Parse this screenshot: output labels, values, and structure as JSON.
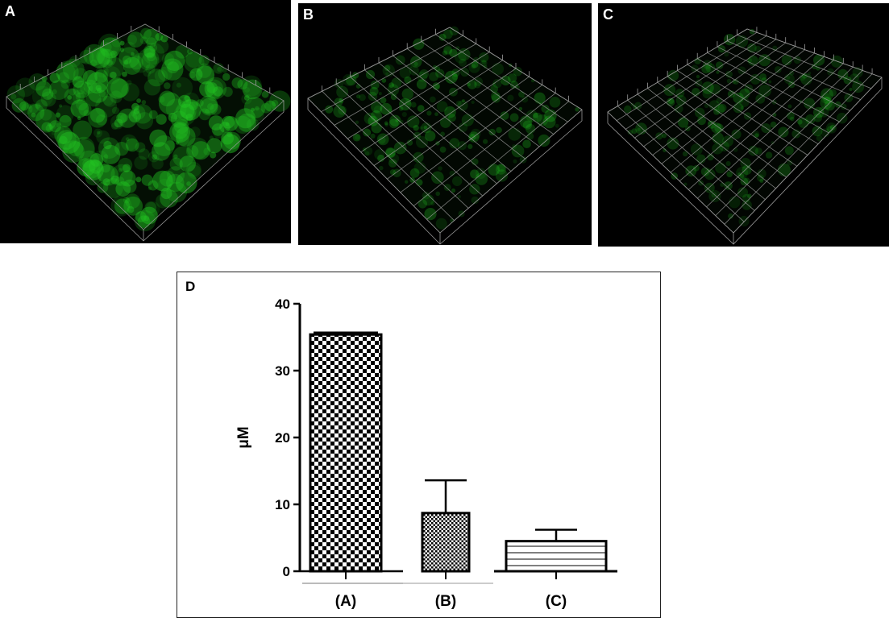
{
  "panels": [
    {
      "label": "A",
      "grid": 10,
      "intensity": 1.0
    },
    {
      "label": "B",
      "grid": 10,
      "intensity": 0.55
    },
    {
      "label": "C",
      "grid": 14,
      "intensity": 0.4
    }
  ],
  "chart_panel_label": "D",
  "chart_data": {
    "type": "bar",
    "categories": [
      "(A)",
      "(B)",
      "(C)"
    ],
    "values": [
      35.4,
      8.7,
      4.5
    ],
    "error_upper": [
      0.3,
      4.9,
      1.7
    ],
    "patterns": [
      "checker-large",
      "checker-small",
      "horizontal-stripes"
    ],
    "title": "",
    "xlabel": "",
    "ylabel": "μM",
    "ylim": [
      0,
      40
    ],
    "yticks": [
      0,
      10,
      20,
      30,
      40
    ],
    "grid": false
  },
  "colors": {
    "fluorescence": "#22c522",
    "grid_lines": "#9a9a9a",
    "bar_edge": "#000000"
  }
}
